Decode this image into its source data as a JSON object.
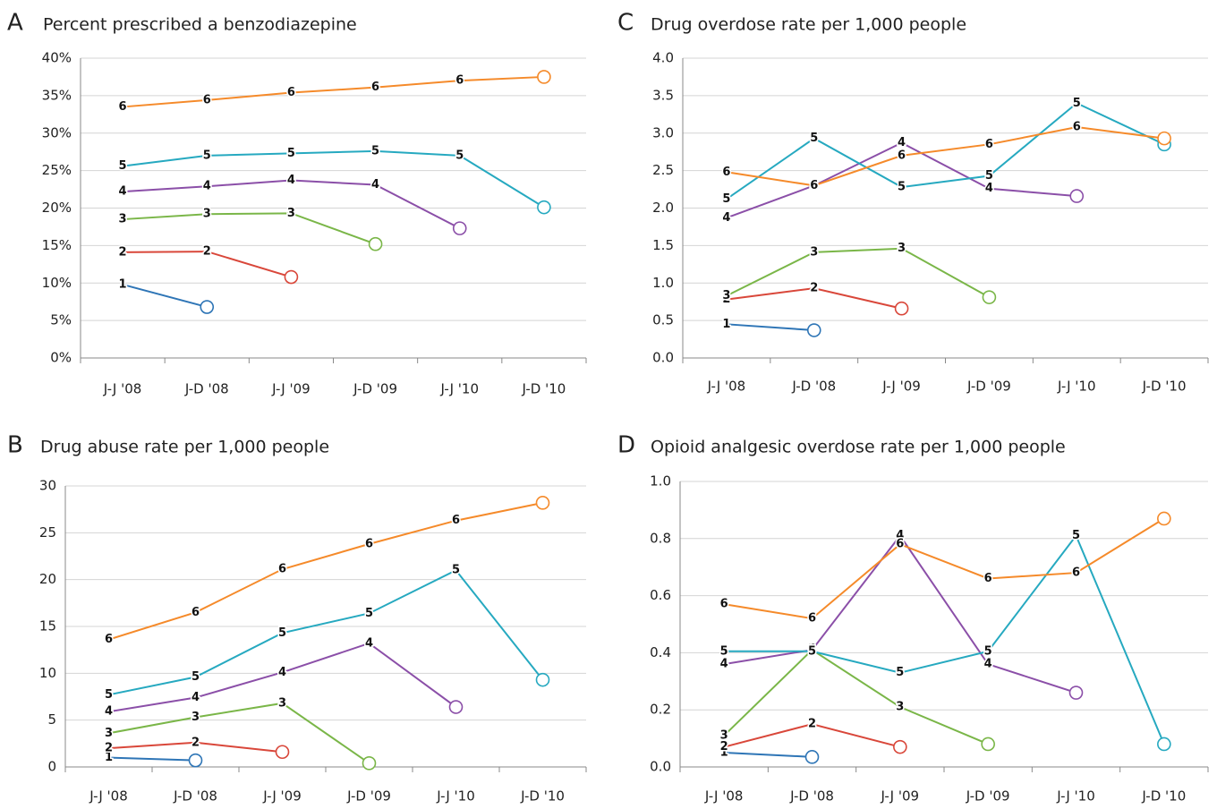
{
  "chart_data": [
    {
      "type": "line",
      "panel": "A",
      "title": "Percent prescribed a benzodiazepine",
      "categories": [
        "J-J '08",
        "J-D '08",
        "J-J '09",
        "J-D '09",
        "J-J '10",
        "J-D '10"
      ],
      "ylim": [
        0,
        40
      ],
      "yticks": [
        {
          "value": 0,
          "label": "0%"
        },
        {
          "value": 5,
          "label": "5%"
        },
        {
          "value": 10,
          "label": "10%"
        },
        {
          "value": 15,
          "label": "15%"
        },
        {
          "value": 20,
          "label": "20%"
        },
        {
          "value": 25,
          "label": "25%"
        },
        {
          "value": 30,
          "label": "30%"
        },
        {
          "value": 35,
          "label": "35%"
        },
        {
          "value": 40,
          "label": "40%"
        }
      ],
      "grid": true,
      "series": [
        {
          "name": "1",
          "color": "#2e75b6",
          "values": [
            9.8,
            6.8,
            null,
            null,
            null,
            null
          ]
        },
        {
          "name": "2",
          "color": "#d9473a",
          "values": [
            14.1,
            14.2,
            10.8,
            null,
            null,
            null
          ]
        },
        {
          "name": "3",
          "color": "#7ab648",
          "values": [
            18.5,
            19.2,
            19.3,
            15.2,
            null,
            null
          ]
        },
        {
          "name": "4",
          "color": "#8b4fa8",
          "values": [
            22.2,
            22.9,
            23.7,
            23.1,
            17.3,
            null
          ]
        },
        {
          "name": "5",
          "color": "#26a9c0",
          "values": [
            25.6,
            27.0,
            27.3,
            27.6,
            27.0,
            20.1
          ]
        },
        {
          "name": "6",
          "color": "#f58a2a",
          "values": [
            33.5,
            34.4,
            35.4,
            36.1,
            37.0,
            37.5
          ]
        }
      ]
    },
    {
      "type": "line",
      "panel": "C",
      "title": "Drug overdose rate per 1,000 people",
      "categories": [
        "J-J '08",
        "J-D '08",
        "J-J '09",
        "J-D '09",
        "J-J '10",
        "J-D '10"
      ],
      "ylim": [
        0,
        4
      ],
      "yticks": [
        {
          "value": 0,
          "label": "0.0"
        },
        0.5,
        {
          "value": 1,
          "label": "1.0"
        },
        1.5,
        {
          "value": 2,
          "label": "2.0"
        },
        2.5,
        {
          "value": 3,
          "label": "3.0"
        },
        3.5,
        {
          "value": 4,
          "label": "4.0"
        }
      ],
      "grid": true,
      "series": [
        {
          "name": "1",
          "color": "#2e75b6",
          "values": [
            0.45,
            0.37,
            null,
            null,
            null,
            null
          ]
        },
        {
          "name": "2",
          "color": "#d9473a",
          "values": [
            0.78,
            0.93,
            0.66,
            null,
            null,
            null
          ]
        },
        {
          "name": "3",
          "color": "#7ab648",
          "values": [
            0.83,
            1.41,
            1.46,
            0.81,
            null,
            null
          ]
        },
        {
          "name": "4",
          "color": "#8b4fa8",
          "values": [
            1.87,
            2.3,
            2.87,
            2.26,
            2.16,
            null
          ]
        },
        {
          "name": "5",
          "color": "#26a9c0",
          "values": [
            2.12,
            2.93,
            2.28,
            2.43,
            3.4,
            2.85
          ]
        },
        {
          "name": "6",
          "color": "#f58a2a",
          "values": [
            2.48,
            2.3,
            2.7,
            2.85,
            3.08,
            2.93
          ]
        }
      ]
    },
    {
      "type": "line",
      "panel": "B",
      "title": "Drug abuse rate per 1,000 people",
      "categories": [
        "J-J '08",
        "J-D '08",
        "J-J '09",
        "J-D '09",
        "J-J '10",
        "J-D '10"
      ],
      "ylim": [
        0,
        30
      ],
      "yticks": [
        0,
        5,
        10,
        15,
        20,
        25,
        30
      ],
      "grid": true,
      "series": [
        {
          "name": "1",
          "color": "#2e75b6",
          "values": [
            1.0,
            0.7,
            null,
            null,
            null,
            null
          ]
        },
        {
          "name": "2",
          "color": "#d9473a",
          "values": [
            2.0,
            2.6,
            1.6,
            null,
            null,
            null
          ]
        },
        {
          "name": "3",
          "color": "#7ab648",
          "values": [
            3.6,
            5.3,
            6.8,
            0.4,
            null,
            null
          ]
        },
        {
          "name": "4",
          "color": "#8b4fa8",
          "values": [
            5.9,
            7.4,
            10.1,
            13.2,
            6.4,
            null
          ]
        },
        {
          "name": "5",
          "color": "#26a9c0",
          "values": [
            7.7,
            9.6,
            14.3,
            16.4,
            21.0,
            9.3
          ]
        },
        {
          "name": "6",
          "color": "#f58a2a",
          "values": [
            13.6,
            16.5,
            21.1,
            23.8,
            26.3,
            28.2
          ]
        }
      ]
    },
    {
      "type": "line",
      "panel": "D",
      "title": "Opioid analgesic overdose rate per 1,000 people",
      "categories": [
        "J-J '08",
        "J-D '08",
        "J-J '09",
        "J-D '09",
        "J-J '10",
        "J-D '10"
      ],
      "ylim": [
        0,
        1
      ],
      "yticks": [
        {
          "value": 0,
          "label": "0.0"
        },
        0.2,
        0.4,
        0.6,
        0.8,
        {
          "value": 1,
          "label": "1.0"
        }
      ],
      "grid": true,
      "series": [
        {
          "name": "1",
          "color": "#2e75b6",
          "values": [
            0.05,
            0.035,
            null,
            null,
            null,
            null
          ]
        },
        {
          "name": "2",
          "color": "#d9473a",
          "values": [
            0.07,
            0.15,
            0.07,
            null,
            null,
            null
          ]
        },
        {
          "name": "3",
          "color": "#7ab648",
          "values": [
            0.11,
            0.41,
            0.21,
            0.08,
            null,
            null
          ]
        },
        {
          "name": "4",
          "color": "#8b4fa8",
          "values": [
            0.36,
            0.41,
            0.81,
            0.36,
            0.26,
            null
          ]
        },
        {
          "name": "5",
          "color": "#26a9c0",
          "values": [
            0.405,
            0.405,
            0.33,
            0.405,
            0.81,
            0.08
          ]
        },
        {
          "name": "6",
          "color": "#f58a2a",
          "values": [
            0.57,
            0.52,
            0.78,
            0.66,
            0.68,
            0.87
          ]
        }
      ]
    }
  ]
}
